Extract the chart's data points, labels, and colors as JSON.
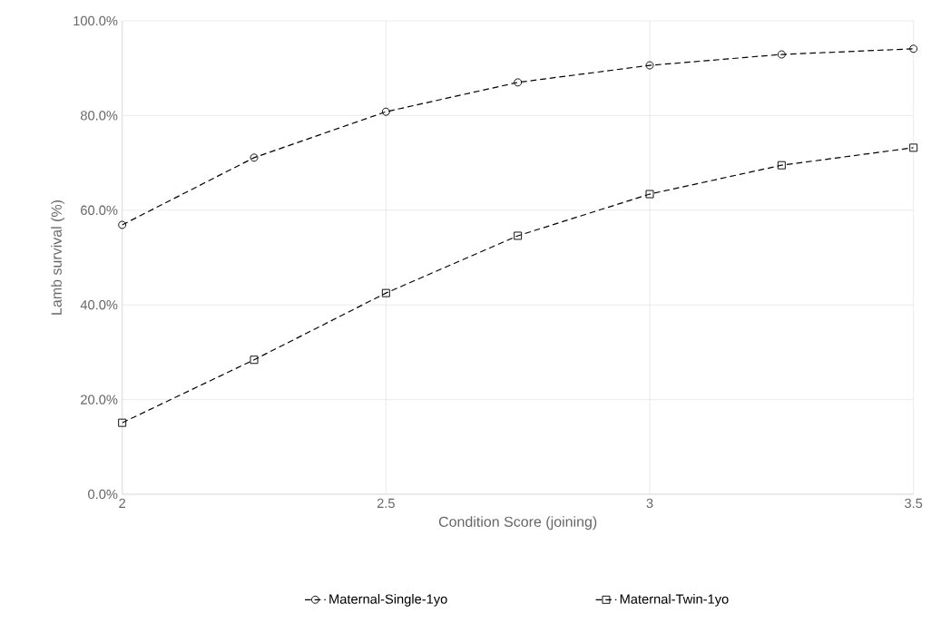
{
  "chart_data": {
    "type": "line",
    "xlabel": "Condition Score (joining)",
    "ylabel": "Lamb survival (%)",
    "x": [
      2,
      2.25,
      2.5,
      2.75,
      3,
      3.25,
      3.5
    ],
    "series": [
      {
        "name": "Maternal-Single-1yo",
        "color": "#000000",
        "marker": "circle",
        "values": [
          56.9,
          71.1,
          80.8,
          87.0,
          90.6,
          92.9,
          94.1
        ]
      },
      {
        "name": "Maternal-Twin-1yo",
        "color": "#000000",
        "marker": "square",
        "values": [
          15.1,
          28.4,
          42.5,
          54.6,
          63.4,
          69.5,
          73.2
        ]
      }
    ],
    "xlim": [
      2,
      3.5
    ],
    "xticks": [
      2,
      2.5,
      3,
      3.5
    ],
    "ylim": [
      0,
      100
    ],
    "yticks": [
      {
        "value": 0,
        "label": "0.0%"
      },
      {
        "value": 20,
        "label": "20.0%"
      },
      {
        "value": 40,
        "label": "40.0%"
      },
      {
        "value": 60,
        "label": "60.0%"
      },
      {
        "value": 80,
        "label": "80.0%"
      },
      {
        "value": 100,
        "label": "100.0%"
      }
    ],
    "grid": true,
    "legend": "bottom",
    "line_style": "dashed"
  }
}
